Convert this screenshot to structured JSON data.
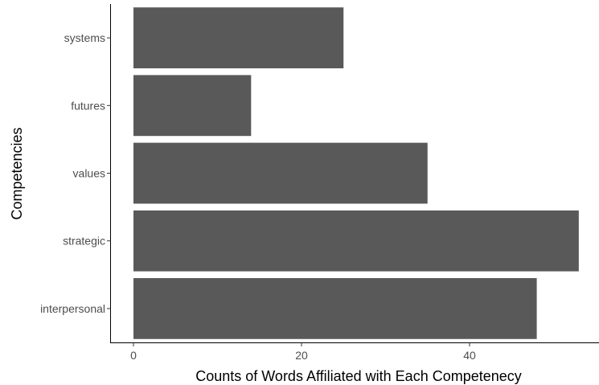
{
  "chart_data": {
    "type": "bar",
    "orientation": "horizontal",
    "categories": [
      "interpersonal",
      "strategic",
      "values",
      "futures",
      "systems"
    ],
    "values": [
      48,
      53,
      35,
      14,
      25
    ],
    "xlabel": "Counts of Words Affiliated with Each Competenecy",
    "ylabel": "Competencies",
    "xlim": [
      0,
      54.5
    ],
    "xticks": [
      0,
      20,
      40
    ],
    "xtick_labels": [
      "0",
      "20",
      "40"
    ],
    "grid": false,
    "legend": "none",
    "bar_color": "#595959",
    "axis_color": "#000000",
    "tick_label_color": "#4d4d4d"
  }
}
